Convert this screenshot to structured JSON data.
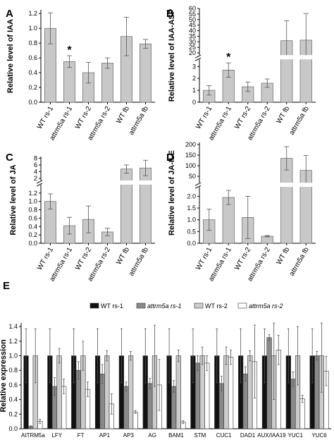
{
  "chart_data": [
    {
      "panel": "A",
      "type": "bar",
      "ylabel": "Relative level of IAA",
      "categories": [
        "WT rs-1",
        "attrm5a rs-1",
        "WT rs-2",
        "attrm5a rs-2",
        "WT fb",
        "attrm5a fb"
      ],
      "values": [
        1.0,
        0.55,
        0.4,
        0.53,
        0.89,
        0.79
      ],
      "errors": [
        0.21,
        0.08,
        0.14,
        0.07,
        0.26,
        0.06
      ],
      "yticks": [
        "0.0",
        "0.2",
        "0.4",
        "0.6",
        "0.8",
        "1.0",
        "1.2"
      ],
      "ylim": [
        0,
        1.25
      ],
      "annotations": [
        {
          "category": "attrm5a rs-1",
          "text": "*"
        }
      ]
    },
    {
      "panel": "B",
      "type": "bar",
      "ylabel": "Relative level of IAA-ASP",
      "categories": [
        "WT rs-1",
        "attrm5a rs-1",
        "WT rs-2",
        "attrm5a rs-2",
        "WT fb",
        "attrm5a fb"
      ],
      "values": [
        1.0,
        2.7,
        1.3,
        1.6,
        31,
        31.5
      ],
      "errors": [
        0.4,
        0.6,
        0.4,
        0.35,
        18,
        24
      ],
      "yticks_lower": [
        "0",
        "1",
        "2",
        "3"
      ],
      "yticks_upper": [
        "20",
        "25",
        "30",
        "35",
        "40",
        "45",
        "50",
        "55",
        "60"
      ],
      "lower_range": [
        0,
        3.6
      ],
      "upper_range": [
        18,
        60
      ],
      "axis_break": true,
      "annotations": [
        {
          "category": "attrm5a rs-1",
          "text": "*"
        }
      ]
    },
    {
      "panel": "C",
      "type": "bar",
      "ylabel": "Relative level of JA",
      "categories": [
        "WT rs-1",
        "attrm5a rs-1",
        "WT rs-2",
        "attrm5a rs-2",
        "WT fb",
        "attrm5a fb"
      ],
      "values": [
        1.0,
        0.42,
        0.57,
        0.27,
        4.8,
        5.1
      ],
      "errors": [
        0.18,
        0.2,
        0.32,
        0.09,
        1.2,
        2.3
      ],
      "yticks_lower": [
        "0.0",
        "0.2",
        "0.4",
        "0.6",
        "0.8",
        "1.0",
        "1.2"
      ],
      "yticks_upper": [
        "2",
        "4",
        "6",
        "8"
      ],
      "lower_range": [
        0,
        1.4
      ],
      "upper_range": [
        1.4,
        8.5
      ],
      "axis_break": true
    },
    {
      "panel": "D",
      "type": "bar",
      "ylabel": "Relative level of JA-ILE",
      "categories": [
        "WT rs-1",
        "attrm5a rs-1",
        "WT rs-2",
        "attrm5a rs-2",
        "WT fb",
        "attrm5a fb"
      ],
      "values": [
        1.0,
        1.95,
        1.1,
        0.3,
        135,
        78
      ],
      "errors": [
        0.45,
        0.3,
        0.9,
        0.03,
        55,
        70
      ],
      "yticks_lower": [
        "0.0",
        "0.5",
        "1.0",
        "1.5",
        "2.0"
      ],
      "yticks_upper": [
        "50",
        "100",
        "150",
        "200"
      ],
      "lower_range": [
        0,
        2.4
      ],
      "upper_range": [
        20,
        210
      ],
      "axis_break": true
    },
    {
      "panel": "E",
      "type": "bar",
      "ylabel": "Relative expression",
      "categories": [
        "AtTRM5a",
        "LFY",
        "FT",
        "AP1",
        "AP3",
        "AG",
        "BAM1",
        "STM",
        "CUC1",
        "DAD1",
        "AUX/IAA19",
        "YUC1",
        "YUC6"
      ],
      "series": [
        {
          "name": "WT rs-1",
          "color": "#111111",
          "values": [
            1,
            1,
            1,
            1,
            1,
            1,
            1,
            1,
            1,
            1,
            1,
            1,
            1
          ],
          "errors": [
            0.37,
            0.37,
            0.37,
            0.37,
            0.37,
            0.37,
            0.37,
            0.37,
            0.37,
            0.37,
            0.37,
            0.37,
            0.37
          ]
        },
        {
          "name": "attrm5a rs-1",
          "color": "#8a8a8a",
          "values": [
            0.03,
            0.58,
            0.8,
            0.75,
            0.58,
            0.62,
            0.58,
            0.9,
            0.62,
            0.75,
            1.25,
            0.68,
            1.0
          ],
          "errors": [
            0.01,
            0.12,
            0.12,
            0.13,
            0.06,
            0.07,
            0.08,
            0.1,
            0.1,
            0.1,
            0.04,
            0.1,
            0.06
          ]
        },
        {
          "name": "WT rs-2",
          "color": "#cccccc",
          "values": [
            1,
            1,
            1,
            1,
            1,
            1,
            1,
            1,
            1,
            1,
            1,
            1,
            1
          ],
          "errors": [
            0.37,
            0.1,
            0.2,
            0.07,
            0.06,
            0.42,
            0.08,
            0.12,
            0.12,
            0.07,
            0.6,
            0.4,
            0.5
          ]
        },
        {
          "name": "attrm5a rs-2",
          "color": "#ffffff",
          "values": [
            0.1,
            0.58,
            0.54,
            0.34,
            0.23,
            0.6,
            0.09,
            0.9,
            0.98,
            0.92,
            1.08,
            0.41,
            0.79
          ],
          "errors": [
            0.03,
            0.1,
            0.1,
            0.14,
            0.02,
            0.35,
            0.02,
            0.1,
            0.1,
            0.5,
            0.2,
            0.05,
            0.2
          ]
        }
      ],
      "yticks": [
        "0.0",
        "0.2",
        "0.4",
        "0.6",
        "0.8",
        "1.0",
        "1.2",
        "1.4"
      ],
      "ylim": [
        0,
        1.45
      ],
      "legend": "top"
    }
  ]
}
